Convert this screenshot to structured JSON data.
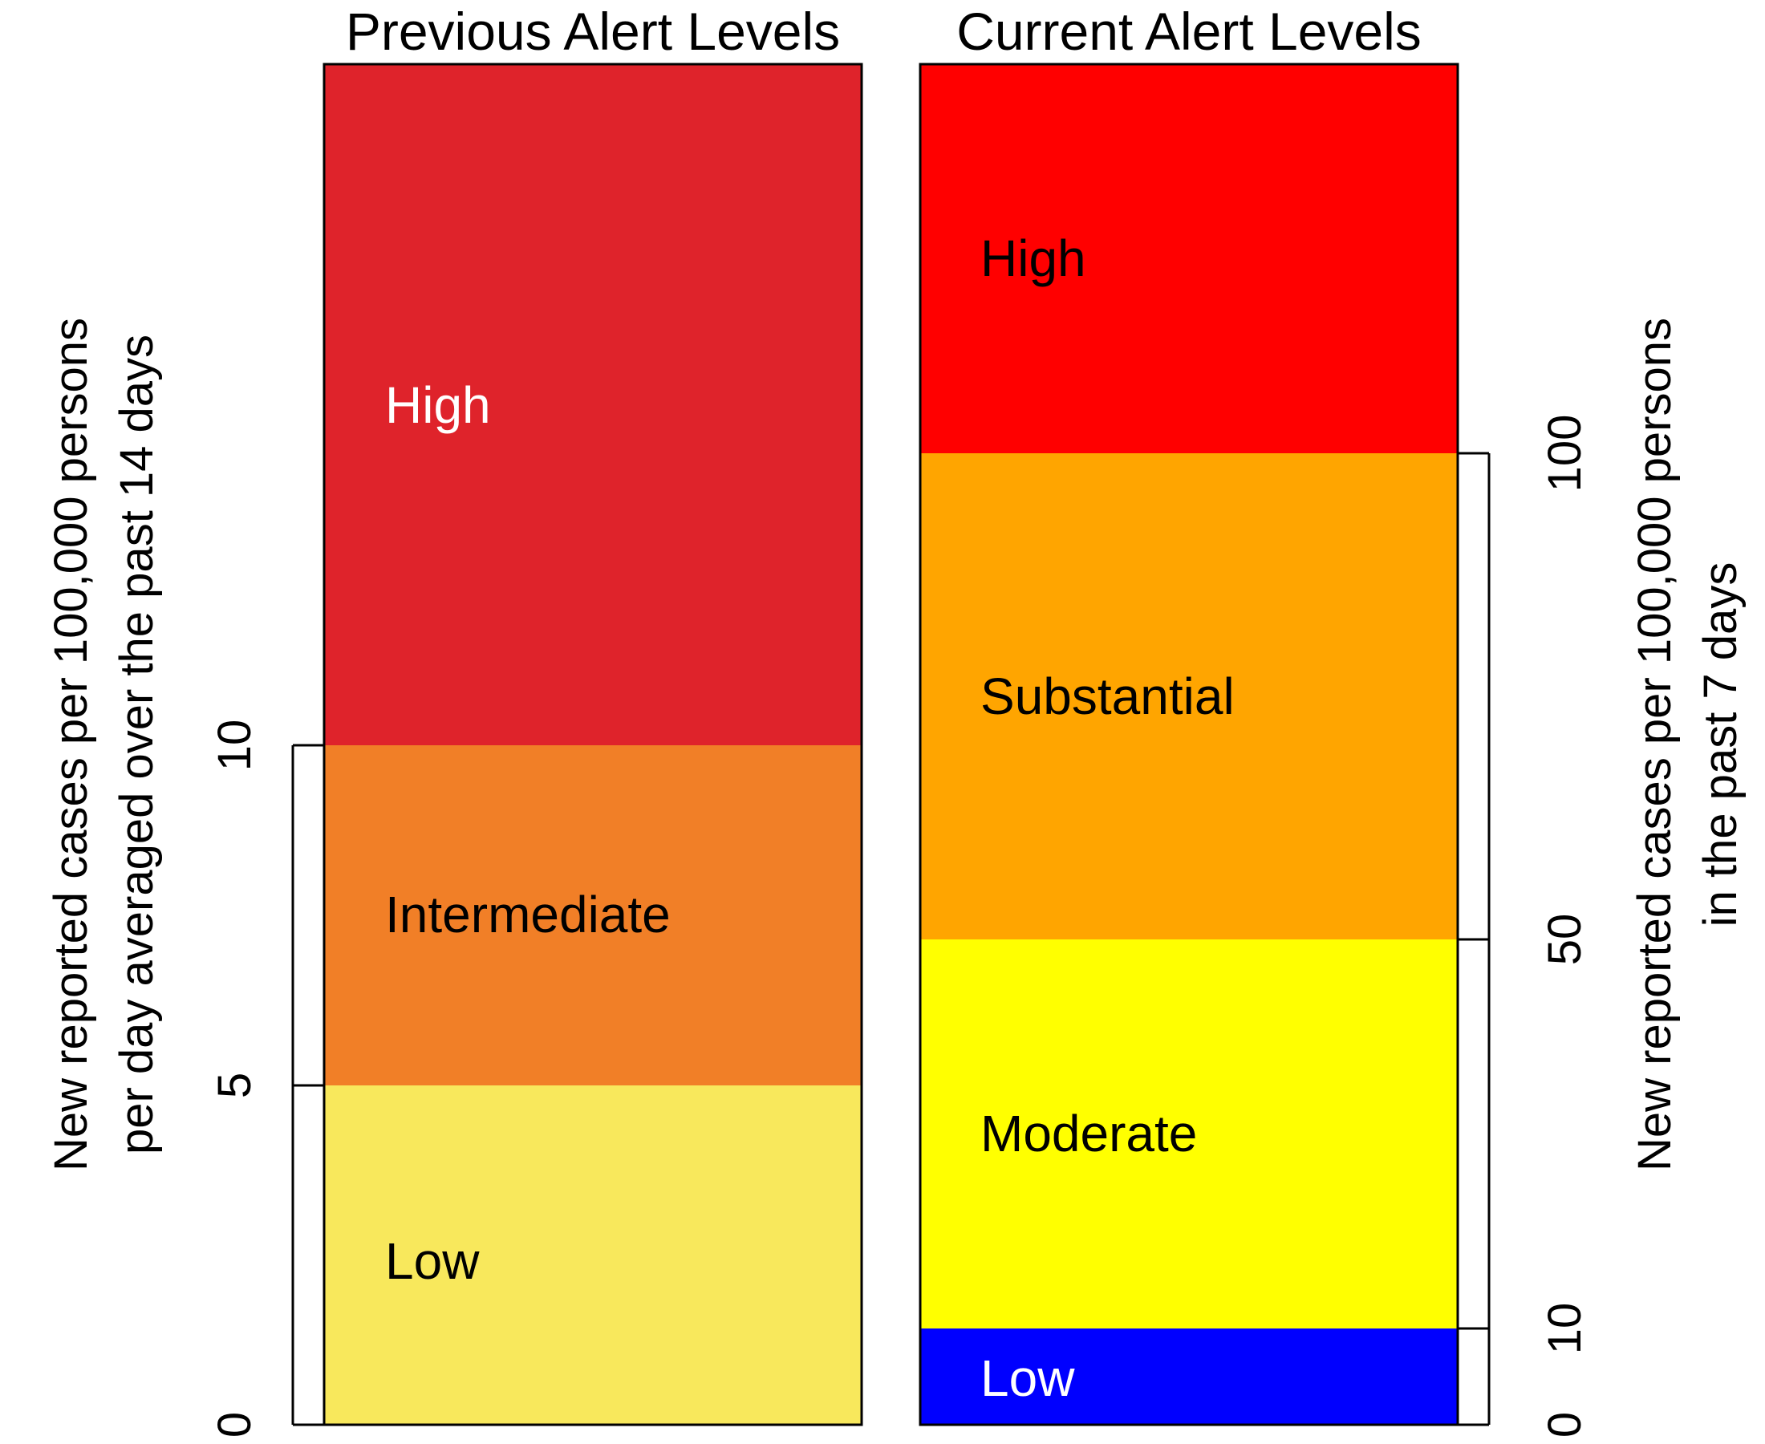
{
  "chart_data": [
    {
      "type": "bar",
      "title": "Previous Alert Levels",
      "ylabel_lines": [
        "New reported cases per 100,000 persons",
        "per day averaged over the past 14 days"
      ],
      "axis_side": "left",
      "ylim": [
        0,
        20
      ],
      "ticks": [
        0,
        5,
        10
      ],
      "tick_labels": [
        "0",
        "5",
        "10"
      ],
      "bands": [
        {
          "label": "Low",
          "from": 0,
          "to": 5,
          "color": "#f8e85c",
          "text_color": "#000000"
        },
        {
          "label": "Intermediate",
          "from": 5,
          "to": 10,
          "color": "#f17f27",
          "text_color": "#000000"
        },
        {
          "label": "High",
          "from": 10,
          "to": 20,
          "color": "#df232b",
          "text_color": "#ffffff"
        }
      ]
    },
    {
      "type": "bar",
      "title": "Current Alert Levels",
      "ylabel_lines": [
        "New reported cases per 100,000 persons",
        "in the past 7 days"
      ],
      "axis_side": "right",
      "ylim": [
        0,
        140
      ],
      "ticks": [
        0,
        10,
        50,
        100
      ],
      "tick_labels": [
        "0",
        "10",
        "50",
        "100"
      ],
      "bands": [
        {
          "label": "Low",
          "from": 0,
          "to": 10,
          "color": "#0000ff",
          "text_color": "#ffffff"
        },
        {
          "label": "Moderate",
          "from": 10,
          "to": 50,
          "color": "#ffff00",
          "text_color": "#000000"
        },
        {
          "label": "Substantial",
          "from": 50,
          "to": 100,
          "color": "#ffa500",
          "text_color": "#000000"
        },
        {
          "label": "High",
          "from": 100,
          "to": 140,
          "color": "#ff0000",
          "text_color": "#000000"
        }
      ]
    }
  ]
}
